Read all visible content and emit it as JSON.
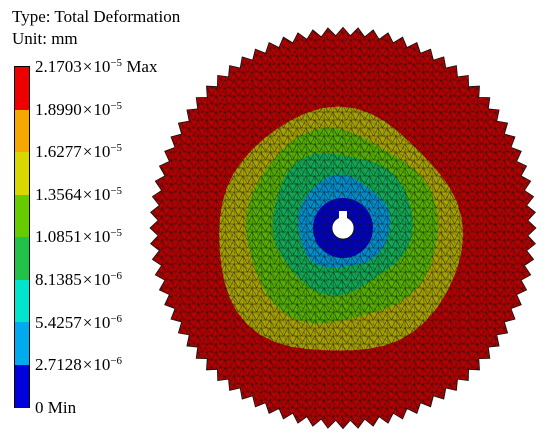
{
  "header": {
    "type_line": "Type: Total Deformation",
    "unit_line": "Unit: mm"
  },
  "legend": {
    "colors": [
      "#ee0000",
      "#f5a800",
      "#d8d800",
      "#66cc00",
      "#22c24a",
      "#00e5cc",
      "#00aaee",
      "#0000dd"
    ],
    "labels": [
      {
        "mantissa": "2.1703",
        "exp": "−5",
        "suffix": "Max"
      },
      {
        "mantissa": "1.8990",
        "exp": "−5",
        "suffix": ""
      },
      {
        "mantissa": "1.6277",
        "exp": "−5",
        "suffix": ""
      },
      {
        "mantissa": "1.3564",
        "exp": "−5",
        "suffix": ""
      },
      {
        "mantissa": "1.0851",
        "exp": "−5",
        "suffix": ""
      },
      {
        "mantissa": "8.1385",
        "exp": "−6",
        "suffix": ""
      },
      {
        "mantissa": "5.4257",
        "exp": "−6",
        "suffix": ""
      },
      {
        "mantissa": "2.7128",
        "exp": "−6",
        "suffix": ""
      },
      {
        "mantissa": "0",
        "exp": "",
        "suffix": "Min"
      }
    ],
    "times_symbol": "×",
    "power_base": "10"
  },
  "model": {
    "teeth": 80,
    "zone_colors": [
      "#b90000",
      "#a8a200",
      "#55b000",
      "#10aa55",
      "#0090d0",
      "#0000c8"
    ],
    "mesh_color": "#111111"
  }
}
